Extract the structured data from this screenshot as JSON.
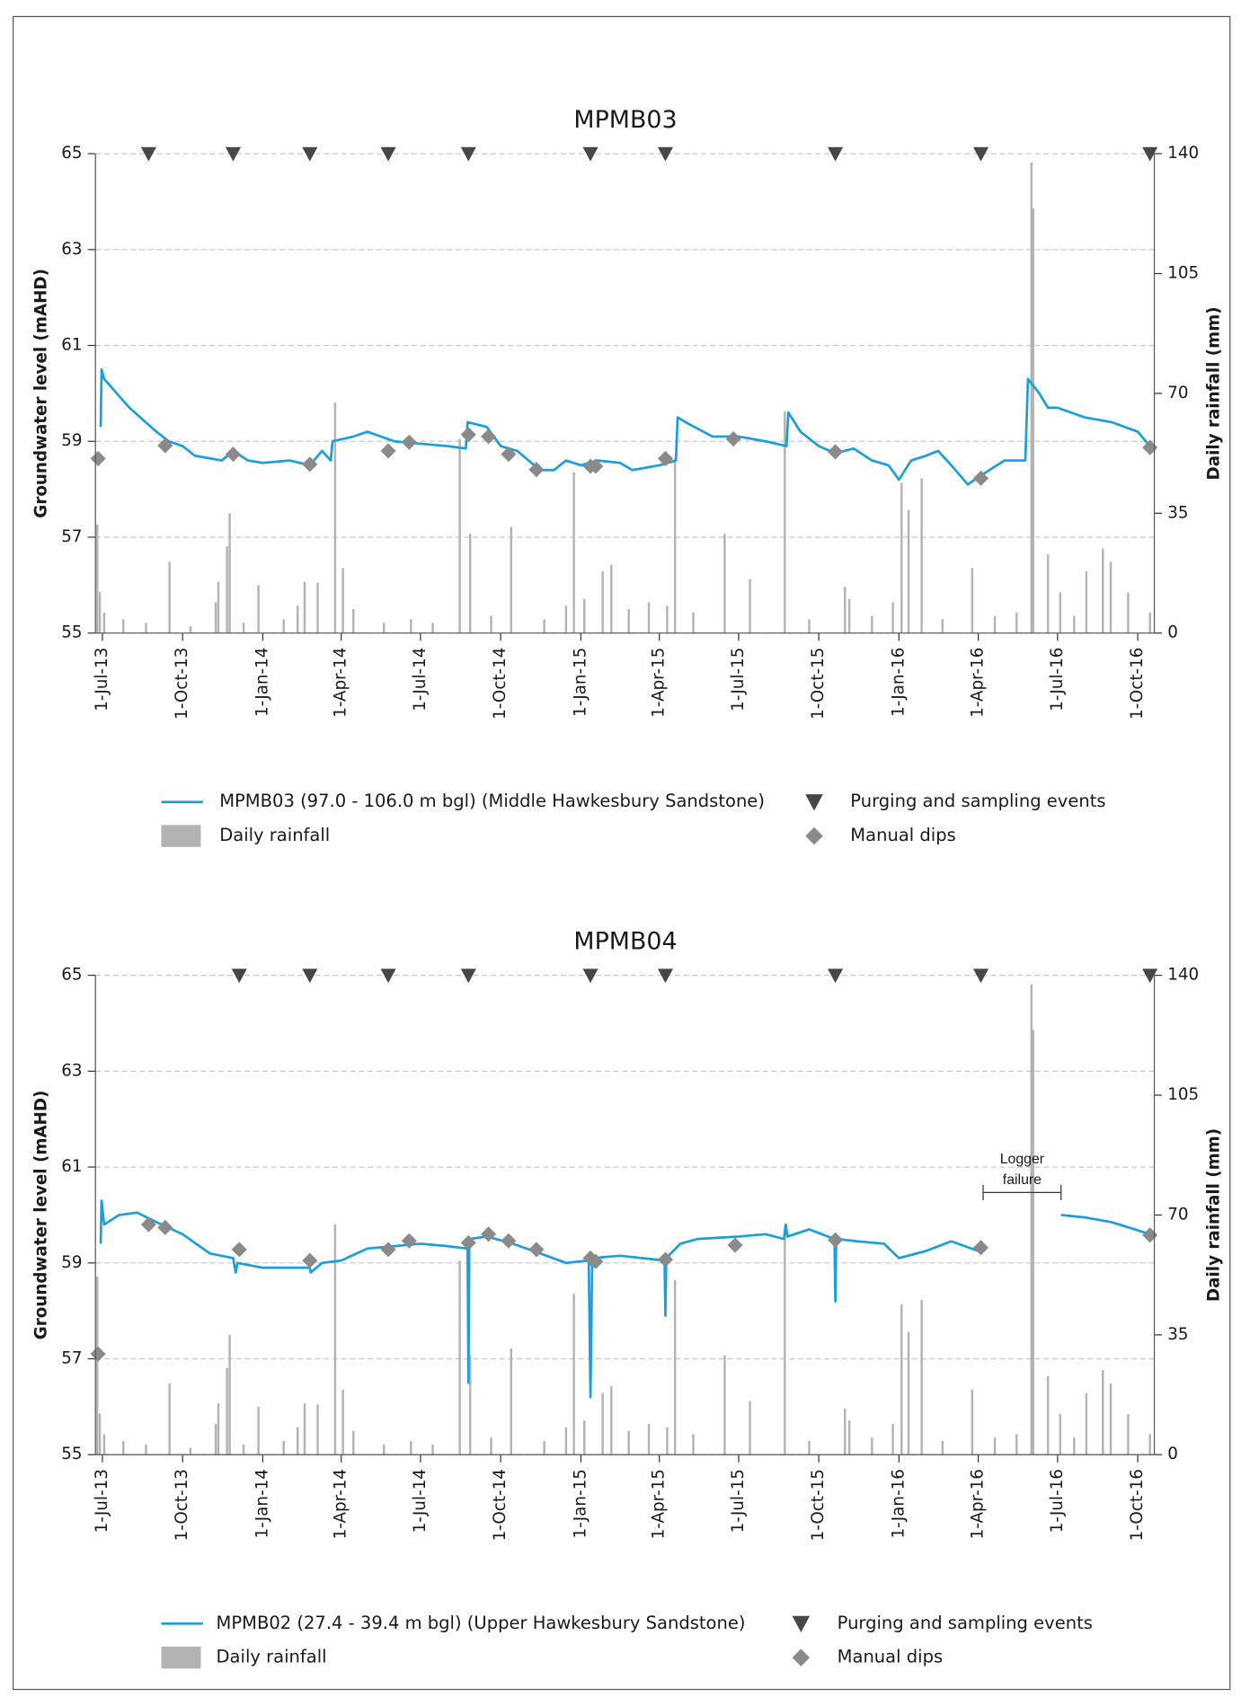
{
  "chart_data": [
    {
      "type": "line",
      "title": "MPMB03",
      "y_label": "Groundwater level (mAHD)",
      "y2_label": "Daily rainfall (mm)",
      "xlim": [
        "2013-06-23",
        "2016-10-20"
      ],
      "xticks": [
        {
          "value": "2013-07-01",
          "label": "1-Jul-13"
        },
        {
          "value": "2013-10-01",
          "label": "1-Oct-13"
        },
        {
          "value": "2014-01-01",
          "label": "1-Jan-14"
        },
        {
          "value": "2014-04-01",
          "label": "1-Apr-14"
        },
        {
          "value": "2014-07-01",
          "label": "1-Jul-14"
        },
        {
          "value": "2014-10-01",
          "label": "1-Oct-14"
        },
        {
          "value": "2015-01-01",
          "label": "1-Jan-15"
        },
        {
          "value": "2015-04-01",
          "label": "1-Apr-15"
        },
        {
          "value": "2015-07-01",
          "label": "1-Jul-15"
        },
        {
          "value": "2015-10-01",
          "label": "1-Oct-15"
        },
        {
          "value": "2016-01-01",
          "label": "1-Jan-16"
        },
        {
          "value": "2016-04-01",
          "label": "1-Apr-16"
        },
        {
          "value": "2016-07-01",
          "label": "1-Jul-16"
        },
        {
          "value": "2016-10-01",
          "label": "1-Oct-16"
        }
      ],
      "ylim": [
        55,
        65
      ],
      "yticks": [
        55,
        57,
        59,
        61,
        63,
        65
      ],
      "y2lim": [
        0,
        140
      ],
      "y2ticks": [
        0,
        35,
        70,
        105,
        140
      ],
      "grid": true,
      "series": [
        {
          "name": "MPMB03 (97.0 - 106.0 m bgl) (Middle Hawkesbury Sandstone)",
          "type": "line",
          "color": "#1a9fdb",
          "x": [
            "2013-06-29",
            "2013-06-30",
            "2013-07-03",
            "2013-08-01",
            "2013-09-01",
            "2013-09-15",
            "2013-10-01",
            "2013-10-15",
            "2013-11-15",
            "2013-11-28",
            "2013-12-15",
            "2014-01-01",
            "2014-02-01",
            "2014-02-24",
            "2014-03-10",
            "2014-03-20",
            "2014-03-22",
            "2014-04-15",
            "2014-05-01",
            "2014-06-01",
            "2014-07-01",
            "2014-08-01",
            "2014-08-22",
            "2014-08-24",
            "2014-09-15",
            "2014-10-01",
            "2014-10-20",
            "2014-11-15",
            "2014-12-01",
            "2014-12-15",
            "2015-01-01",
            "2015-01-20",
            "2015-02-15",
            "2015-03-01",
            "2015-04-01",
            "2015-04-20",
            "2015-04-22",
            "2015-05-01",
            "2015-06-01",
            "2015-07-01",
            "2015-08-01",
            "2015-08-25",
            "2015-08-27",
            "2015-09-10",
            "2015-10-01",
            "2015-10-20",
            "2015-11-10",
            "2015-12-01",
            "2015-12-20",
            "2016-01-01",
            "2016-01-15",
            "2016-02-01",
            "2016-02-15",
            "2016-03-01",
            "2016-03-20",
            "2016-04-05",
            "2016-05-01",
            "2016-05-25",
            "2016-05-28",
            "2016-06-10",
            "2016-06-20",
            "2016-07-01",
            "2016-08-01",
            "2016-09-01",
            "2016-10-01",
            "2016-10-15"
          ],
          "values": [
            59.3,
            60.5,
            60.3,
            59.7,
            59.2,
            59.0,
            58.9,
            58.7,
            58.6,
            58.8,
            58.6,
            58.55,
            58.6,
            58.5,
            58.8,
            58.6,
            59.0,
            59.1,
            59.2,
            59.0,
            58.95,
            58.9,
            58.85,
            59.4,
            59.3,
            58.9,
            58.8,
            58.4,
            58.4,
            58.6,
            58.5,
            58.6,
            58.55,
            58.4,
            58.5,
            58.6,
            59.5,
            59.4,
            59.1,
            59.1,
            59.0,
            58.9,
            59.6,
            59.2,
            58.9,
            58.75,
            58.85,
            58.6,
            58.5,
            58.2,
            58.6,
            58.7,
            58.8,
            58.5,
            58.1,
            58.3,
            58.6,
            58.6,
            60.3,
            60.0,
            59.7,
            59.7,
            59.5,
            59.4,
            59.2,
            58.9
          ]
        },
        {
          "name": "Daily rainfall",
          "type": "bar",
          "axis": "y2",
          "color": "#b3b3b3",
          "x": [
            "2013-06-25",
            "2013-06-28",
            "2013-07-03",
            "2013-07-25",
            "2013-08-20",
            "2013-09-16",
            "2013-10-10",
            "2013-11-08",
            "2013-11-11",
            "2013-11-21",
            "2013-11-24",
            "2013-12-10",
            "2013-12-27",
            "2014-01-25",
            "2014-02-10",
            "2014-02-18",
            "2014-03-05",
            "2014-03-25",
            "2014-04-03",
            "2014-04-15",
            "2014-05-20",
            "2014-06-20",
            "2014-07-15",
            "2014-08-15",
            "2014-08-27",
            "2014-09-20",
            "2014-10-13",
            "2014-11-20",
            "2014-12-15",
            "2014-12-24",
            "2015-01-05",
            "2015-01-26",
            "2015-02-05",
            "2015-02-25",
            "2015-03-20",
            "2015-04-10",
            "2015-04-19",
            "2015-05-10",
            "2015-06-15",
            "2015-07-14",
            "2015-08-23",
            "2015-09-20",
            "2015-10-31",
            "2015-11-05",
            "2015-12-01",
            "2015-12-25",
            "2016-01-04",
            "2016-01-12",
            "2016-01-27",
            "2016-02-20",
            "2016-03-25",
            "2016-04-20",
            "2016-05-15",
            "2016-06-01",
            "2016-06-03",
            "2016-06-20",
            "2016-07-04",
            "2016-07-20",
            "2016-08-03",
            "2016-08-22",
            "2016-08-31",
            "2016-09-20",
            "2016-10-15"
          ],
          "values": [
            31.7,
            12,
            6,
            4,
            3,
            20.8,
            2,
            9,
            15,
            25.3,
            35,
            3,
            14,
            4,
            8,
            15,
            14.7,
            67.3,
            19,
            7,
            3,
            4,
            3,
            56.7,
            29,
            5,
            31,
            4,
            8,
            47,
            10,
            18,
            20,
            7,
            9,
            8,
            51,
            6,
            29,
            15.7,
            64.7,
            4,
            13.5,
            10,
            5,
            9,
            43.9,
            35.9,
            45.2,
            4,
            19,
            5,
            6,
            137.4,
            124,
            23,
            11.9,
            5,
            18,
            24.7,
            20.8,
            11.9,
            6
          ]
        },
        {
          "name": "Purging and sampling events",
          "type": "scatter",
          "marker": "triangle",
          "color": "#474747",
          "x": [
            "2013-08-23",
            "2013-11-28",
            "2014-02-24",
            "2014-05-25",
            "2014-08-25",
            "2015-01-12",
            "2015-04-08",
            "2015-10-20",
            "2016-04-04",
            "2016-10-15"
          ],
          "values": [
            65,
            65,
            65,
            65,
            65,
            65,
            65,
            65,
            65,
            65
          ]
        },
        {
          "name": "Manual dips",
          "type": "scatter",
          "marker": "diamond",
          "color": "#8a8a8a",
          "x": [
            "2013-06-26",
            "2013-09-11",
            "2013-11-28",
            "2014-02-24",
            "2014-05-25",
            "2014-06-18",
            "2014-08-25",
            "2014-09-17",
            "2014-10-10",
            "2014-11-11",
            "2015-01-12",
            "2015-01-18",
            "2015-04-08",
            "2015-06-25",
            "2015-10-20",
            "2016-04-04",
            "2016-10-15"
          ],
          "values": [
            58.64,
            58.91,
            58.73,
            58.52,
            58.8,
            58.98,
            59.14,
            59.1,
            58.73,
            58.41,
            58.48,
            58.48,
            58.64,
            59.05,
            58.78,
            58.23,
            58.87
          ]
        }
      ]
    },
    {
      "type": "line",
      "title": "MPMB04",
      "y_label": "Groundwater level (mAHD)",
      "y2_label": "Daily rainfall (mm)",
      "xlim": [
        "2013-06-23",
        "2016-10-20"
      ],
      "xticks": [
        {
          "value": "2013-07-01",
          "label": "1-Jul-13"
        },
        {
          "value": "2013-10-01",
          "label": "1-Oct-13"
        },
        {
          "value": "2014-01-01",
          "label": "1-Jan-14"
        },
        {
          "value": "2014-04-01",
          "label": "1-Apr-14"
        },
        {
          "value": "2014-07-01",
          "label": "1-Jul-14"
        },
        {
          "value": "2014-10-01",
          "label": "1-Oct-14"
        },
        {
          "value": "2015-01-01",
          "label": "1-Jan-15"
        },
        {
          "value": "2015-04-01",
          "label": "1-Apr-15"
        },
        {
          "value": "2015-07-01",
          "label": "1-Jul-15"
        },
        {
          "value": "2015-10-01",
          "label": "1-Oct-15"
        },
        {
          "value": "2016-01-01",
          "label": "1-Jan-16"
        },
        {
          "value": "2016-04-01",
          "label": "1-Apr-16"
        },
        {
          "value": "2016-07-01",
          "label": "1-Jul-16"
        },
        {
          "value": "2016-10-01",
          "label": "1-Oct-16"
        }
      ],
      "ylim": [
        55,
        65
      ],
      "yticks": [
        55,
        57,
        59,
        61,
        63,
        65
      ],
      "y2lim": [
        0,
        140
      ],
      "y2ticks": [
        0,
        35,
        70,
        105,
        140
      ],
      "grid": true,
      "annotation": [
        "Logger",
        "failure"
      ],
      "series": [
        {
          "name": "MPMB02 (27.4 - 39.4 m bgl) (Upper Hawkesbury Sandstone)",
          "type": "line",
          "color": "#1a9fdb",
          "x": [
            "2013-06-29",
            "2013-06-30",
            "2013-07-03",
            "2013-07-20",
            "2013-08-10",
            "2013-09-01",
            "2013-10-01",
            "2013-11-01",
            "2013-11-28",
            "2013-12-01",
            "2013-12-03",
            "2014-01-01",
            "2014-02-01",
            "2014-02-24",
            "2014-02-25",
            "2014-03-10",
            "2014-04-01",
            "2014-05-01",
            "2014-06-01",
            "2014-07-01",
            "2014-08-01",
            "2014-08-24",
            "2014-08-25",
            "2014-08-26",
            "2014-09-15",
            "2014-10-15",
            "2014-11-15",
            "2014-12-15",
            "2015-01-10",
            "2015-01-12",
            "2015-01-14",
            "2015-02-15",
            "2015-04-07",
            "2015-04-08",
            "2015-04-09",
            "2015-04-25",
            "2015-05-15",
            "2015-07-01",
            "2015-08-01",
            "2015-08-22",
            "2015-08-24",
            "2015-08-26",
            "2015-09-20",
            "2015-10-19",
            "2015-10-20",
            "2015-10-21",
            "2015-11-15",
            "2015-12-15",
            "2016-01-01",
            "2016-02-01",
            "2016-03-01",
            "2016-04-01",
            "2016-04-05",
            "2016-05-20",
            "2016-07-05",
            "2016-08-01",
            "2016-09-01",
            "2016-10-15"
          ],
          "values": [
            59.4,
            60.3,
            59.8,
            60.0,
            60.05,
            59.85,
            59.6,
            59.2,
            59.1,
            58.8,
            59.0,
            58.9,
            58.9,
            58.9,
            58.8,
            59.0,
            59.05,
            59.3,
            59.35,
            59.4,
            59.35,
            59.3,
            56.5,
            59.5,
            59.55,
            59.4,
            59.2,
            59.0,
            59.05,
            56.2,
            59.1,
            59.15,
            59.05,
            57.9,
            59.1,
            59.4,
            59.5,
            59.55,
            59.6,
            59.5,
            59.8,
            59.55,
            59.7,
            59.5,
            58.2,
            59.5,
            59.45,
            59.4,
            59.1,
            59.25,
            59.45,
            59.25,
            59.3,
            null,
            60.0,
            59.95,
            59.85,
            59.6
          ]
        },
        {
          "name": "Daily rainfall",
          "type": "bar",
          "axis": "y2",
          "color": "#b3b3b3",
          "x": [
            "2013-06-25",
            "2013-06-28",
            "2013-07-03",
            "2013-07-25",
            "2013-08-20",
            "2013-09-16",
            "2013-10-10",
            "2013-11-08",
            "2013-11-11",
            "2013-11-21",
            "2013-11-24",
            "2013-12-10",
            "2013-12-27",
            "2014-01-25",
            "2014-02-10",
            "2014-02-18",
            "2014-03-05",
            "2014-03-25",
            "2014-04-03",
            "2014-04-15",
            "2014-05-20",
            "2014-06-20",
            "2014-07-15",
            "2014-08-15",
            "2014-08-27",
            "2014-09-20",
            "2014-10-13",
            "2014-11-20",
            "2014-12-15",
            "2014-12-24",
            "2015-01-05",
            "2015-01-26",
            "2015-02-05",
            "2015-02-25",
            "2015-03-20",
            "2015-04-10",
            "2015-04-19",
            "2015-05-10",
            "2015-06-15",
            "2015-07-14",
            "2015-08-23",
            "2015-09-20",
            "2015-10-31",
            "2015-11-05",
            "2015-12-01",
            "2015-12-25",
            "2016-01-04",
            "2016-01-12",
            "2016-01-27",
            "2016-02-20",
            "2016-03-25",
            "2016-04-20",
            "2016-05-15",
            "2016-06-01",
            "2016-06-03",
            "2016-06-20",
            "2016-07-04",
            "2016-07-20",
            "2016-08-03",
            "2016-08-22",
            "2016-08-31",
            "2016-09-20",
            "2016-10-15"
          ],
          "values": [
            52,
            12,
            6,
            4,
            3,
            20.8,
            2,
            9,
            15,
            25.3,
            35,
            3,
            14,
            4,
            8,
            15,
            14.7,
            67.3,
            19,
            7,
            3,
            4,
            3,
            56.7,
            29,
            5,
            31,
            4,
            8,
            47,
            10,
            18,
            20,
            7,
            9,
            8,
            51,
            6,
            29,
            15.7,
            64.7,
            4,
            13.5,
            10,
            5,
            9,
            43.9,
            35.9,
            45.2,
            4,
            19,
            5,
            6,
            137.4,
            124,
            23,
            11.9,
            5,
            18,
            24.7,
            20.8,
            11.9,
            6
          ]
        },
        {
          "name": "Purging and sampling events",
          "type": "scatter",
          "marker": "triangle",
          "color": "#474747",
          "x": [
            "2013-12-05",
            "2014-02-24",
            "2014-05-25",
            "2014-08-25",
            "2015-01-12",
            "2015-04-08",
            "2015-10-20",
            "2016-04-04",
            "2016-10-15"
          ],
          "values": [
            65,
            65,
            65,
            65,
            65,
            65,
            65,
            65,
            65
          ]
        },
        {
          "name": "Manual dips",
          "type": "scatter",
          "marker": "diamond",
          "color": "#8a8a8a",
          "x": [
            "2013-06-26",
            "2013-08-23",
            "2013-09-11",
            "2013-12-05",
            "2014-02-24",
            "2014-05-25",
            "2014-06-18",
            "2014-08-25",
            "2014-09-17",
            "2014-10-10",
            "2014-11-11",
            "2015-01-12",
            "2015-01-18",
            "2015-04-08",
            "2015-06-27",
            "2015-10-20",
            "2016-04-04",
            "2016-10-15"
          ],
          "values": [
            57.1,
            59.8,
            59.74,
            59.28,
            59.05,
            59.28,
            59.46,
            59.42,
            59.6,
            59.46,
            59.28,
            59.1,
            59.03,
            59.07,
            59.37,
            59.48,
            59.32,
            59.58
          ]
        }
      ]
    }
  ]
}
